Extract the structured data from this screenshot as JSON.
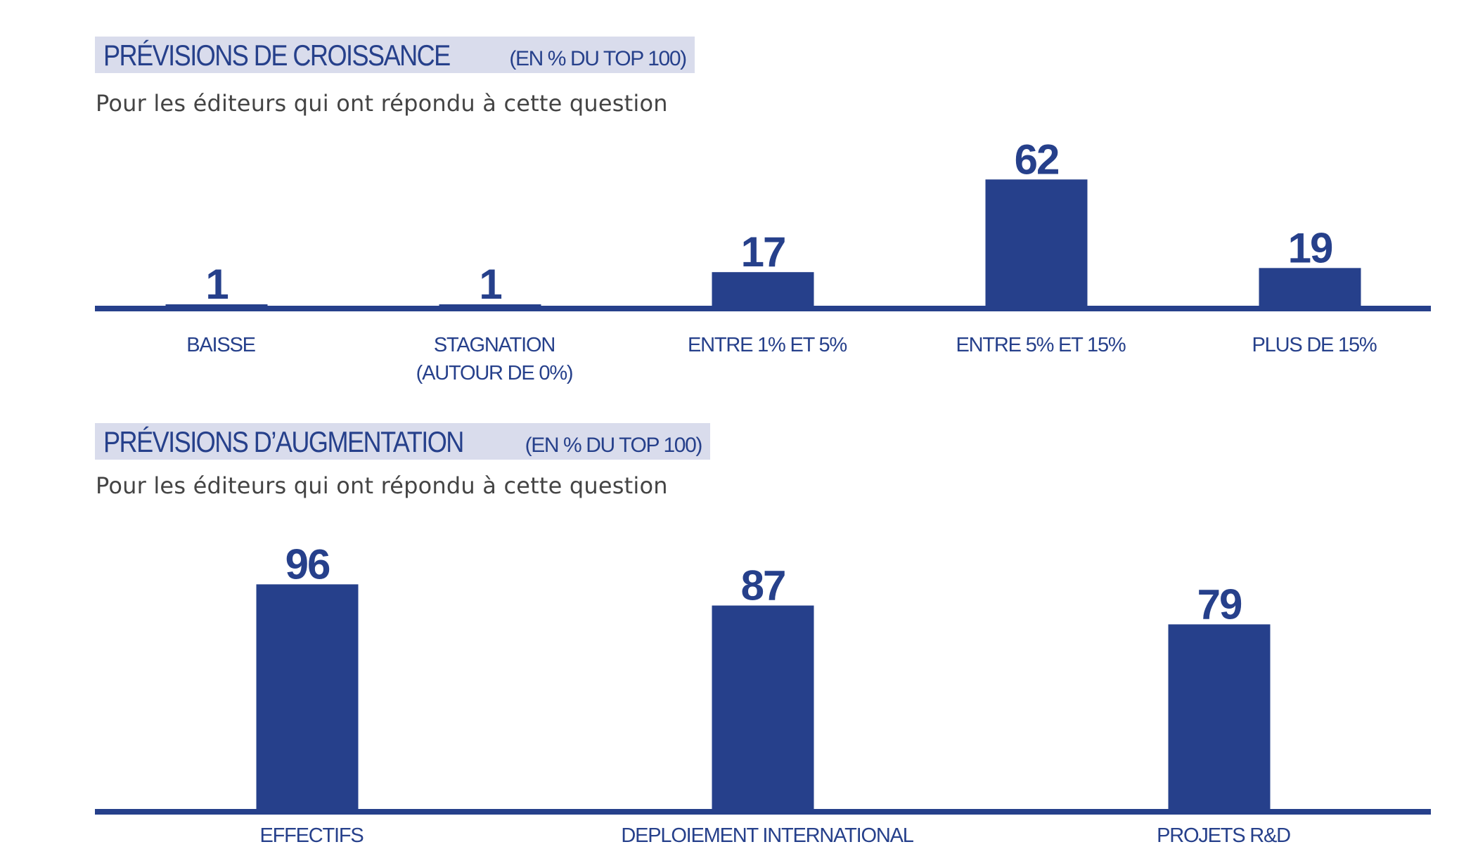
{
  "chart_data": [
    {
      "type": "bar",
      "title": "PRÉVISIONS DE CROISSANCE",
      "title_suffix": "(EN % DU TOP 100)",
      "subtitle": "Pour les éditeurs qui ont répondu à cette question",
      "categories": [
        [
          "BAISSE"
        ],
        [
          "STAGNATION",
          "(AUTOUR DE 0%)"
        ],
        [
          "ENTRE 1% ET 5%"
        ],
        [
          "ENTRE 5% ET 15%"
        ],
        [
          "PLUS DE 15%"
        ]
      ],
      "values": [
        1,
        1,
        17,
        62,
        19
      ],
      "ylim": [
        0,
        100
      ],
      "grid": false,
      "bar_color": "#26408b",
      "title_background": "#d9dcec"
    },
    {
      "type": "bar",
      "title": "PRÉVISIONS D’AUGMENTATION",
      "title_suffix": "(EN % DU TOP 100)",
      "subtitle": "Pour les éditeurs qui ont répondu à cette question",
      "categories": [
        [
          "EFFECTIFS"
        ],
        [
          "DEPLOIEMENT INTERNATIONAL"
        ],
        [
          "PROJETS R&D"
        ]
      ],
      "values": [
        96,
        87,
        79
      ],
      "ylim": [
        0,
        100
      ],
      "grid": false,
      "bar_color": "#26408b",
      "title_background": "#d9dcec"
    }
  ]
}
